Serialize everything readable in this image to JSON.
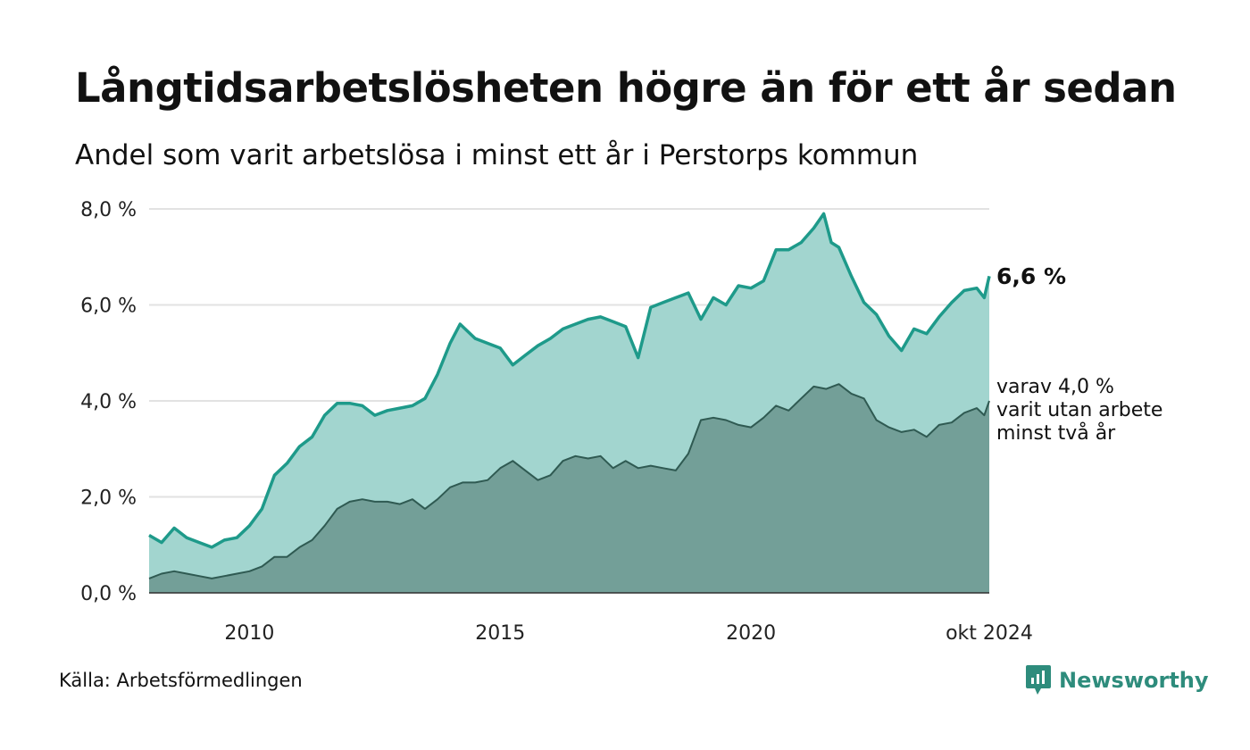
{
  "title": "Långtidsarbetslösheten högre än för ett år sedan",
  "subtitle": "Andel som varit arbetslösa i minst ett år i Perstorps kommun",
  "source": "Källa: Arbetsförmedlingen",
  "brand": {
    "name": "Newsworthy",
    "icon": "newsworthy-logo-icon"
  },
  "end_label": "6,6 %",
  "annotation": [
    "varav 4,0 %",
    "varit utan arbete",
    "minst två år"
  ],
  "colors": {
    "series1_fill": "#a2d5cf",
    "series1_line": "#1e9a8a",
    "series2_fill": "#739f98",
    "series2_line": "#2f5a52",
    "grid": "#e2e2e2",
    "brand": "#2e8c7c"
  },
  "chart_data": {
    "type": "area",
    "title": "Långtidsarbetslösheten högre än för ett år sedan",
    "subtitle": "Andel som varit arbetslösa i minst ett år i Perstorps kommun",
    "ylim": [
      0,
      8
    ],
    "y_ticks": [
      "0,0 %",
      "2,0 %",
      "4,0 %",
      "6,0 %",
      "8,0 %"
    ],
    "y_tick_values": [
      0,
      2,
      4,
      6,
      8
    ],
    "x_ticks": [
      "2010",
      "2015",
      "2020",
      "okt 2024"
    ],
    "x_tick_values": [
      2010.0,
      2015.0,
      2020.0,
      2024.75
    ],
    "xlim": [
      2008.0,
      2024.75
    ],
    "grid": true,
    "series": [
      {
        "values": [
          [
            2008.0,
            1.2
          ],
          [
            2008.25,
            1.05
          ],
          [
            2008.5,
            1.35
          ],
          [
            2008.75,
            1.15
          ],
          [
            2009.0,
            1.05
          ],
          [
            2009.25,
            0.95
          ],
          [
            2009.5,
            1.1
          ],
          [
            2009.75,
            1.15
          ],
          [
            2010.0,
            1.4
          ],
          [
            2010.25,
            1.75
          ],
          [
            2010.5,
            2.45
          ],
          [
            2010.75,
            2.7
          ],
          [
            2011.0,
            3.05
          ],
          [
            2011.25,
            3.25
          ],
          [
            2011.5,
            3.7
          ],
          [
            2011.75,
            3.95
          ],
          [
            2012.0,
            3.95
          ],
          [
            2012.25,
            3.9
          ],
          [
            2012.5,
            3.7
          ],
          [
            2012.75,
            3.8
          ],
          [
            2013.0,
            3.85
          ],
          [
            2013.25,
            3.9
          ],
          [
            2013.5,
            4.05
          ],
          [
            2013.75,
            4.55
          ],
          [
            2014.0,
            5.2
          ],
          [
            2014.2,
            5.6
          ],
          [
            2014.5,
            5.3
          ],
          [
            2014.75,
            5.2
          ],
          [
            2015.0,
            5.1
          ],
          [
            2015.25,
            4.75
          ],
          [
            2015.5,
            4.95
          ],
          [
            2015.75,
            5.15
          ],
          [
            2016.0,
            5.3
          ],
          [
            2016.25,
            5.5
          ],
          [
            2016.5,
            5.6
          ],
          [
            2016.75,
            5.7
          ],
          [
            2017.0,
            5.75
          ],
          [
            2017.25,
            5.65
          ],
          [
            2017.5,
            5.55
          ],
          [
            2017.75,
            4.9
          ],
          [
            2018.0,
            5.95
          ],
          [
            2018.25,
            6.05
          ],
          [
            2018.5,
            6.15
          ],
          [
            2018.75,
            6.25
          ],
          [
            2019.0,
            5.7
          ],
          [
            2019.25,
            6.15
          ],
          [
            2019.5,
            6.0
          ],
          [
            2019.75,
            6.4
          ],
          [
            2020.0,
            6.35
          ],
          [
            2020.25,
            6.5
          ],
          [
            2020.5,
            7.15
          ],
          [
            2020.75,
            7.15
          ],
          [
            2021.0,
            7.3
          ],
          [
            2021.25,
            7.6
          ],
          [
            2021.45,
            7.9
          ],
          [
            2021.6,
            7.3
          ],
          [
            2021.75,
            7.2
          ],
          [
            2022.0,
            6.6
          ],
          [
            2022.25,
            6.05
          ],
          [
            2022.5,
            5.8
          ],
          [
            2022.75,
            5.35
          ],
          [
            2023.0,
            5.05
          ],
          [
            2023.25,
            5.5
          ],
          [
            2023.5,
            5.4
          ],
          [
            2023.75,
            5.75
          ],
          [
            2024.0,
            6.05
          ],
          [
            2024.25,
            6.3
          ],
          [
            2024.5,
            6.35
          ],
          [
            2024.65,
            6.15
          ],
          [
            2024.75,
            6.6
          ]
        ]
      },
      {
        "values": [
          [
            2008.0,
            0.3
          ],
          [
            2008.25,
            0.4
          ],
          [
            2008.5,
            0.45
          ],
          [
            2008.75,
            0.4
          ],
          [
            2009.0,
            0.35
          ],
          [
            2009.25,
            0.3
          ],
          [
            2009.5,
            0.35
          ],
          [
            2009.75,
            0.4
          ],
          [
            2010.0,
            0.45
          ],
          [
            2010.25,
            0.55
          ],
          [
            2010.5,
            0.75
          ],
          [
            2010.75,
            0.75
          ],
          [
            2011.0,
            0.95
          ],
          [
            2011.25,
            1.1
          ],
          [
            2011.5,
            1.4
          ],
          [
            2011.75,
            1.75
          ],
          [
            2012.0,
            1.9
          ],
          [
            2012.25,
            1.95
          ],
          [
            2012.5,
            1.9
          ],
          [
            2012.75,
            1.9
          ],
          [
            2013.0,
            1.85
          ],
          [
            2013.25,
            1.95
          ],
          [
            2013.5,
            1.75
          ],
          [
            2013.75,
            1.95
          ],
          [
            2014.0,
            2.2
          ],
          [
            2014.25,
            2.3
          ],
          [
            2014.5,
            2.3
          ],
          [
            2014.75,
            2.35
          ],
          [
            2015.0,
            2.6
          ],
          [
            2015.25,
            2.75
          ],
          [
            2015.5,
            2.55
          ],
          [
            2015.75,
            2.35
          ],
          [
            2016.0,
            2.45
          ],
          [
            2016.25,
            2.75
          ],
          [
            2016.5,
            2.85
          ],
          [
            2016.75,
            2.8
          ],
          [
            2017.0,
            2.85
          ],
          [
            2017.25,
            2.6
          ],
          [
            2017.5,
            2.75
          ],
          [
            2017.75,
            2.6
          ],
          [
            2018.0,
            2.65
          ],
          [
            2018.25,
            2.6
          ],
          [
            2018.5,
            2.55
          ],
          [
            2018.75,
            2.9
          ],
          [
            2019.0,
            3.6
          ],
          [
            2019.25,
            3.65
          ],
          [
            2019.5,
            3.6
          ],
          [
            2019.75,
            3.5
          ],
          [
            2020.0,
            3.45
          ],
          [
            2020.25,
            3.65
          ],
          [
            2020.5,
            3.9
          ],
          [
            2020.75,
            3.8
          ],
          [
            2021.0,
            4.05
          ],
          [
            2021.25,
            4.3
          ],
          [
            2021.5,
            4.25
          ],
          [
            2021.75,
            4.35
          ],
          [
            2022.0,
            4.15
          ],
          [
            2022.25,
            4.05
          ],
          [
            2022.5,
            3.6
          ],
          [
            2022.75,
            3.45
          ],
          [
            2023.0,
            3.35
          ],
          [
            2023.25,
            3.4
          ],
          [
            2023.5,
            3.25
          ],
          [
            2023.75,
            3.5
          ],
          [
            2024.0,
            3.55
          ],
          [
            2024.25,
            3.75
          ],
          [
            2024.5,
            3.85
          ],
          [
            2024.65,
            3.7
          ],
          [
            2024.75,
            4.0
          ]
        ]
      }
    ]
  }
}
